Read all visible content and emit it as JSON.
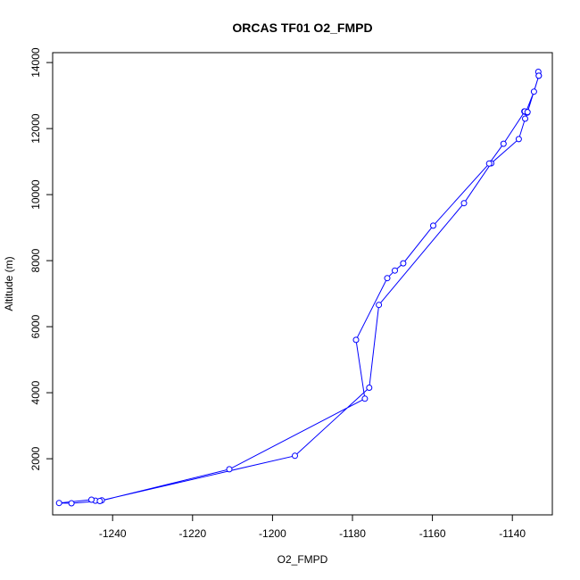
{
  "chart_data": {
    "type": "line",
    "title": "ORCAS TF01 O2_FMPD",
    "xlabel": "O2_FMPD",
    "ylabel": "Altitude (m)",
    "xlim": [
      -1255,
      -1130
    ],
    "ylim": [
      300,
      14300
    ],
    "xticks": [
      -1240,
      -1220,
      -1200,
      -1180,
      -1160,
      -1140
    ],
    "yticks": [
      2000,
      4000,
      6000,
      8000,
      10000,
      12000,
      14000
    ],
    "grid": false,
    "legend": "none",
    "series_color": "#0000ff",
    "marker": "open-circle",
    "points": [
      {
        "x": -1133.5,
        "y": 13720
      },
      {
        "x": -1133.4,
        "y": 13600
      },
      {
        "x": -1134.6,
        "y": 13120
      },
      {
        "x": -1136.6,
        "y": 12500
      },
      {
        "x": -1137.0,
        "y": 12520
      },
      {
        "x": -1136.3,
        "y": 12480
      },
      {
        "x": -1136.8,
        "y": 12300
      },
      {
        "x": -1138.4,
        "y": 11680
      },
      {
        "x": -1145.3,
        "y": 10950
      },
      {
        "x": -1152.1,
        "y": 9740
      },
      {
        "x": -1173.4,
        "y": 6660
      },
      {
        "x": -1175.8,
        "y": 4150
      },
      {
        "x": -1194.4,
        "y": 2090
      },
      {
        "x": -1242.7,
        "y": 740
      },
      {
        "x": -1244.3,
        "y": 730
      },
      {
        "x": -1245.3,
        "y": 760
      },
      {
        "x": -1253.4,
        "y": 660
      },
      {
        "x": -1250.3,
        "y": 650
      },
      {
        "x": -1243.2,
        "y": 720
      },
      {
        "x": -1210.8,
        "y": 1680
      },
      {
        "x": -1176.9,
        "y": 3820
      },
      {
        "x": -1179.1,
        "y": 5600
      },
      {
        "x": -1171.3,
        "y": 7470
      },
      {
        "x": -1169.4,
        "y": 7700
      },
      {
        "x": -1167.3,
        "y": 7920
      },
      {
        "x": -1159.8,
        "y": 9060
      },
      {
        "x": -1145.8,
        "y": 10940
      },
      {
        "x": -1142.2,
        "y": 11540
      },
      {
        "x": -1136.9,
        "y": 12520
      },
      {
        "x": -1136.2,
        "y": 12500
      },
      {
        "x": -1133.4,
        "y": 13600
      }
    ]
  }
}
